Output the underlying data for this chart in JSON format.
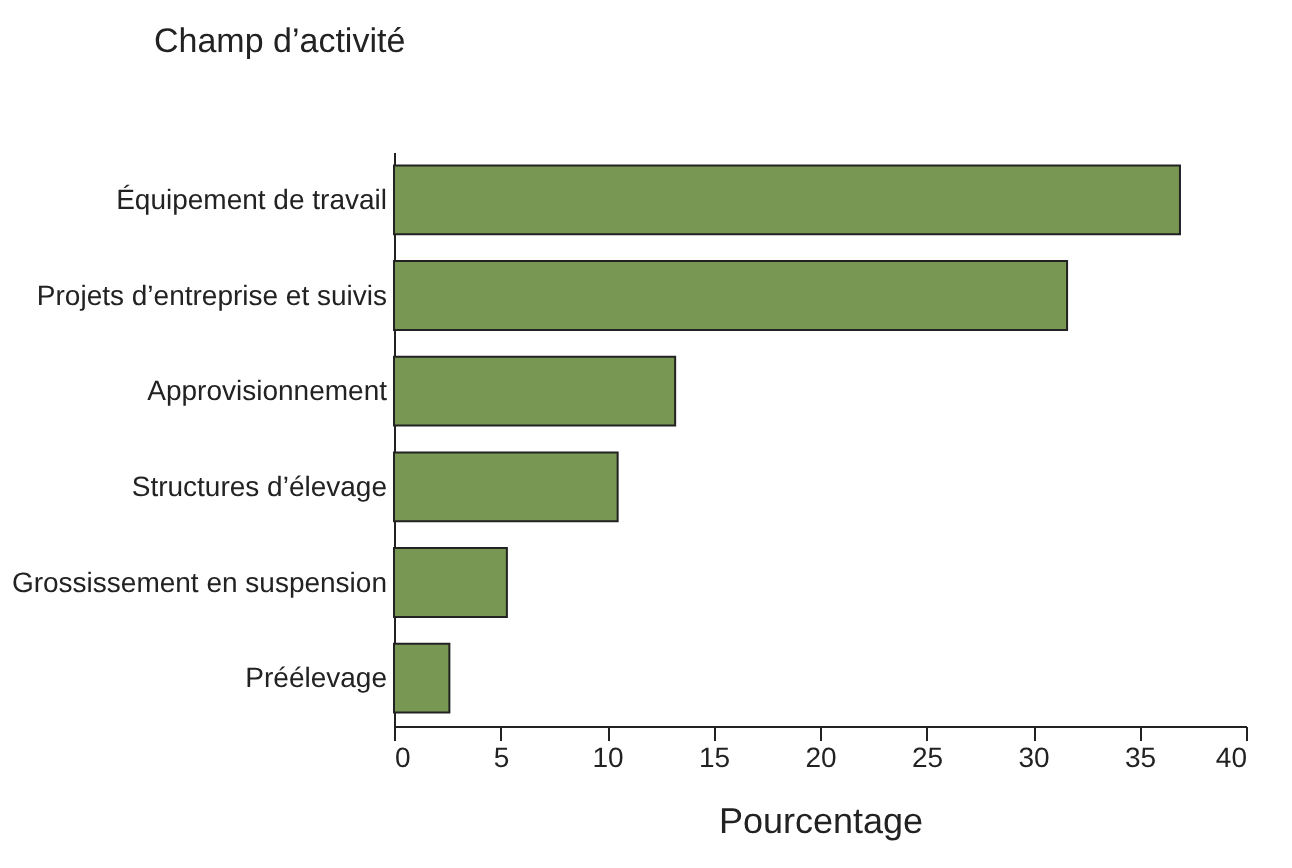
{
  "chart_data": {
    "type": "bar",
    "orientation": "horizontal",
    "title": "Champ d’activité",
    "xlabel": "Pourcentage",
    "categories": [
      "Équipement de travail",
      "Projets d’entreprise et suivis",
      "Approvisionnement",
      "Structures d’élevage",
      "Grossissement en suspension",
      "Préélevage"
    ],
    "values": [
      36.9,
      31.6,
      13.2,
      10.5,
      5.3,
      2.6
    ],
    "color": "#779753",
    "xlim": [
      0,
      40
    ],
    "xticks": [
      0,
      5,
      10,
      15,
      20,
      25,
      30,
      35,
      40
    ],
    "grid": false
  }
}
